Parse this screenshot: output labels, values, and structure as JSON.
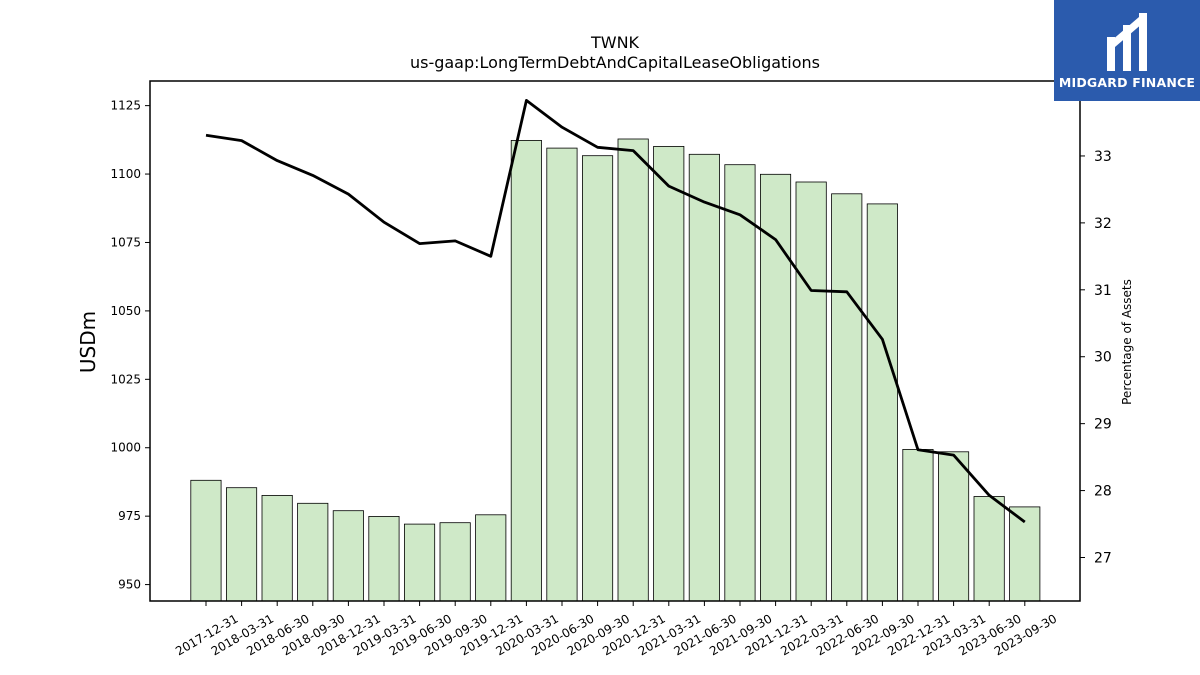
{
  "brand": {
    "name": "MIDGARD FINANCE",
    "color": "#2b5bad"
  },
  "chart_data": {
    "type": "bar",
    "title": "TWNK",
    "subtitle": "us-gaap:LongTermDebtAndCapitalLeaseObligations",
    "ylabel": "USDm",
    "y2label": "Percentage of Assets",
    "ylim": [
      944,
      1134
    ],
    "y2lim": [
      26.35,
      34.12
    ],
    "yticks": [
      950,
      975,
      1000,
      1025,
      1050,
      1075,
      1100,
      1125
    ],
    "y2ticks": [
      27,
      28,
      29,
      30,
      31,
      32,
      33
    ],
    "categories": [
      "2017-12-31",
      "2018-03-31",
      "2018-06-30",
      "2018-09-30",
      "2018-12-31",
      "2019-03-31",
      "2019-06-30",
      "2019-09-30",
      "2019-12-31",
      "2020-03-31",
      "2020-06-30",
      "2020-09-30",
      "2020-12-31",
      "2021-03-31",
      "2021-06-30",
      "2021-09-30",
      "2021-12-31",
      "2022-03-31",
      "2022-06-30",
      "2022-09-30",
      "2022-12-31",
      "2023-03-31",
      "2023-06-30",
      "2023-09-30"
    ],
    "series": [
      {
        "kind": "bar",
        "axis": "left",
        "color": "#cfe9c8",
        "values": [
          988.1,
          985.4,
          982.6,
          979.7,
          977.0,
          974.9,
          972.1,
          972.6,
          975.5,
          1112.3,
          1109.5,
          1106.7,
          1112.8,
          1110.1,
          1107.2,
          1103.4,
          1099.9,
          1097.1,
          1092.8,
          1089.1,
          999.4,
          998.5,
          982.2,
          978.4
        ]
      },
      {
        "kind": "line",
        "axis": "right",
        "color": "#000000",
        "values": [
          33.31,
          33.23,
          32.93,
          32.71,
          32.43,
          32.01,
          31.69,
          31.73,
          31.5,
          33.83,
          33.43,
          33.13,
          33.08,
          32.55,
          32.31,
          32.12,
          31.75,
          30.99,
          30.97,
          30.26,
          28.61,
          28.53,
          27.93,
          27.53
        ]
      }
    ]
  }
}
